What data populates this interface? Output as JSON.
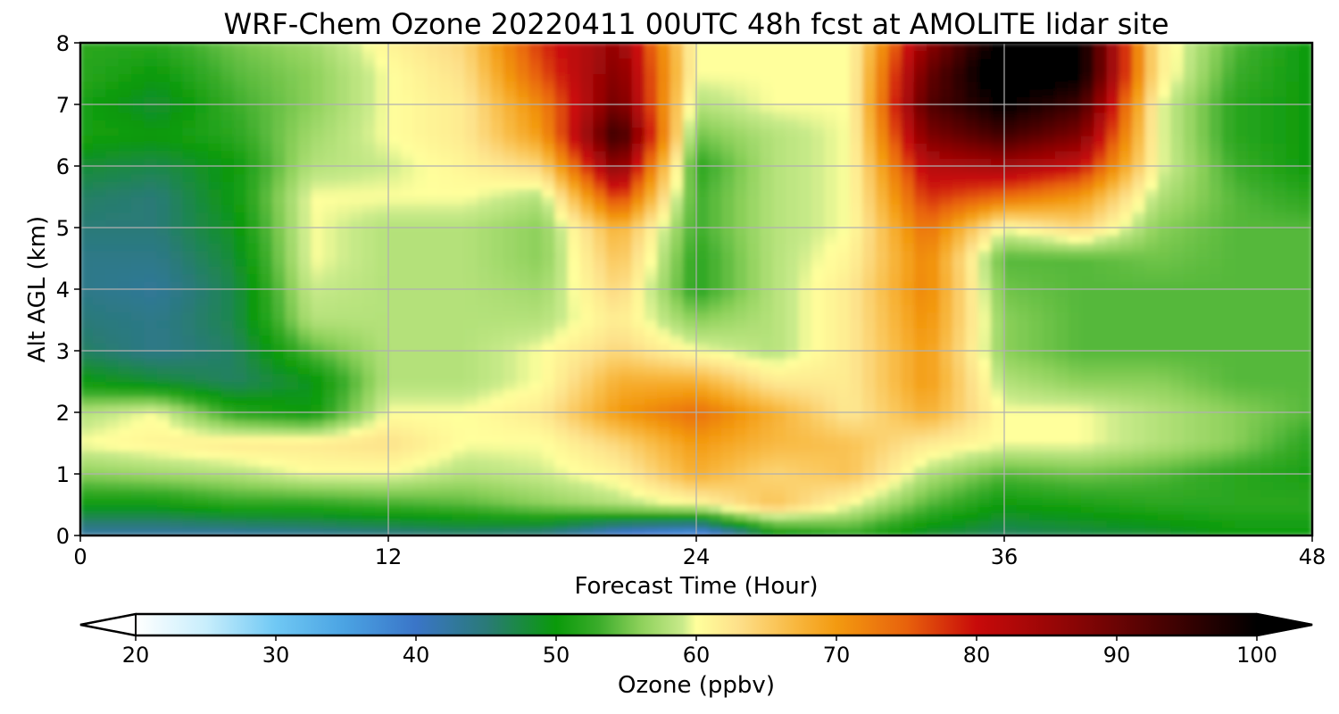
{
  "chart_data": {
    "type": "heatmap",
    "title": "WRF-Chem Ozone  20220411 00UTC 48h fcst at AMOLITE lidar site",
    "xlabel": "Forecast Time (Hour)",
    "ylabel": "Alt AGL (km)",
    "xlim": [
      0,
      48
    ],
    "ylim": [
      0,
      8
    ],
    "x_ticks": [
      "0",
      "12",
      "24",
      "36",
      "48"
    ],
    "y_ticks": [
      "0",
      "1",
      "2",
      "3",
      "4",
      "5",
      "6",
      "7",
      "8"
    ],
    "grid": true,
    "colorbar": {
      "label": "Ozone  (ppbv)",
      "range": [
        20,
        100
      ],
      "ticks": [
        "20",
        "30",
        "40",
        "50",
        "60",
        "70",
        "80",
        "90",
        "100"
      ],
      "extend": "both",
      "stops": [
        [
          20,
          "#ffffff"
        ],
        [
          25,
          "#c8eefc"
        ],
        [
          30,
          "#6fc8f4"
        ],
        [
          35,
          "#4aa2e2"
        ],
        [
          40,
          "#3a75c8"
        ],
        [
          45,
          "#2a7a78"
        ],
        [
          50,
          "#0a9a0a"
        ],
        [
          53,
          "#3aac2a"
        ],
        [
          56,
          "#8cd05a"
        ],
        [
          59,
          "#c8ea8a"
        ],
        [
          60,
          "#ffff9c"
        ],
        [
          63,
          "#fde08a"
        ],
        [
          67,
          "#f8b840"
        ],
        [
          70,
          "#f39a10"
        ],
        [
          75,
          "#e8620c"
        ],
        [
          80,
          "#c80a0a"
        ],
        [
          87,
          "#8a0505"
        ],
        [
          95,
          "#360101"
        ],
        [
          100,
          "#000000"
        ]
      ]
    },
    "x_hours": [
      0,
      3,
      6,
      9,
      12,
      15,
      18,
      21,
      24,
      27,
      30,
      33,
      36,
      39,
      42,
      45,
      48
    ],
    "y_km": [
      0,
      0.5,
      1,
      1.5,
      2,
      2.5,
      3,
      3.5,
      4,
      4.5,
      5,
      5.5,
      6,
      6.5,
      7,
      7.5,
      8
    ],
    "values": [
      [
        42,
        42,
        42,
        43,
        44,
        45,
        44,
        38,
        35,
        48,
        52,
        48,
        46,
        47,
        48,
        50,
        50
      ],
      [
        50,
        50,
        52,
        52,
        53,
        54,
        56,
        58,
        60,
        66,
        60,
        54,
        50,
        51,
        52,
        52,
        52
      ],
      [
        56,
        57,
        58,
        60,
        60,
        58,
        59,
        61,
        68,
        64,
        66,
        58,
        54,
        55,
        54,
        52,
        51
      ],
      [
        60,
        61,
        62,
        62,
        63,
        60,
        60,
        64,
        70,
        67,
        66,
        62,
        60,
        60,
        58,
        56,
        52
      ],
      [
        58,
        60,
        52,
        50,
        60,
        60,
        62,
        70,
        74,
        68,
        62,
        68,
        60,
        60,
        58,
        56,
        54
      ],
      [
        50,
        48,
        46,
        49,
        58,
        58,
        60,
        68,
        68,
        62,
        62,
        70,
        58,
        56,
        56,
        54,
        54
      ],
      [
        46,
        44,
        46,
        54,
        58,
        58,
        60,
        64,
        60,
        58,
        62,
        70,
        56,
        54,
        54,
        54,
        54
      ],
      [
        45,
        44,
        47,
        58,
        58,
        58,
        58,
        62,
        56,
        58,
        62,
        71,
        56,
        54,
        54,
        54,
        54
      ],
      [
        44,
        43,
        47,
        59,
        58,
        58,
        57,
        64,
        52,
        58,
        62,
        72,
        55,
        54,
        54,
        54,
        54
      ],
      [
        44,
        44,
        48,
        60,
        58,
        58,
        56,
        66,
        52,
        58,
        61,
        72,
        54,
        54,
        55,
        54,
        54
      ],
      [
        45,
        45,
        49,
        60,
        58,
        58,
        56,
        68,
        53,
        58,
        60,
        74,
        60,
        64,
        56,
        54,
        54
      ],
      [
        46,
        45,
        50,
        60,
        60,
        60,
        58,
        78,
        53,
        58,
        60,
        78,
        74,
        70,
        58,
        54,
        52
      ],
      [
        48,
        47,
        50,
        58,
        59,
        61,
        64,
        88,
        52,
        58,
        60,
        82,
        84,
        80,
        60,
        53,
        50
      ],
      [
        51,
        50,
        52,
        57,
        60,
        62,
        70,
        96,
        55,
        58,
        60,
        88,
        94,
        88,
        60,
        52,
        50
      ],
      [
        51,
        48,
        53,
        56,
        60,
        62,
        72,
        90,
        58,
        60,
        60,
        92,
        100,
        94,
        60,
        52,
        50
      ],
      [
        52,
        50,
        54,
        56,
        60,
        63,
        76,
        88,
        60,
        60,
        60,
        90,
        104,
        100,
        62,
        53,
        50
      ],
      [
        52,
        52,
        55,
        57,
        61,
        64,
        78,
        86,
        60,
        60,
        60,
        86,
        102,
        100,
        62,
        54,
        50
      ]
    ]
  }
}
